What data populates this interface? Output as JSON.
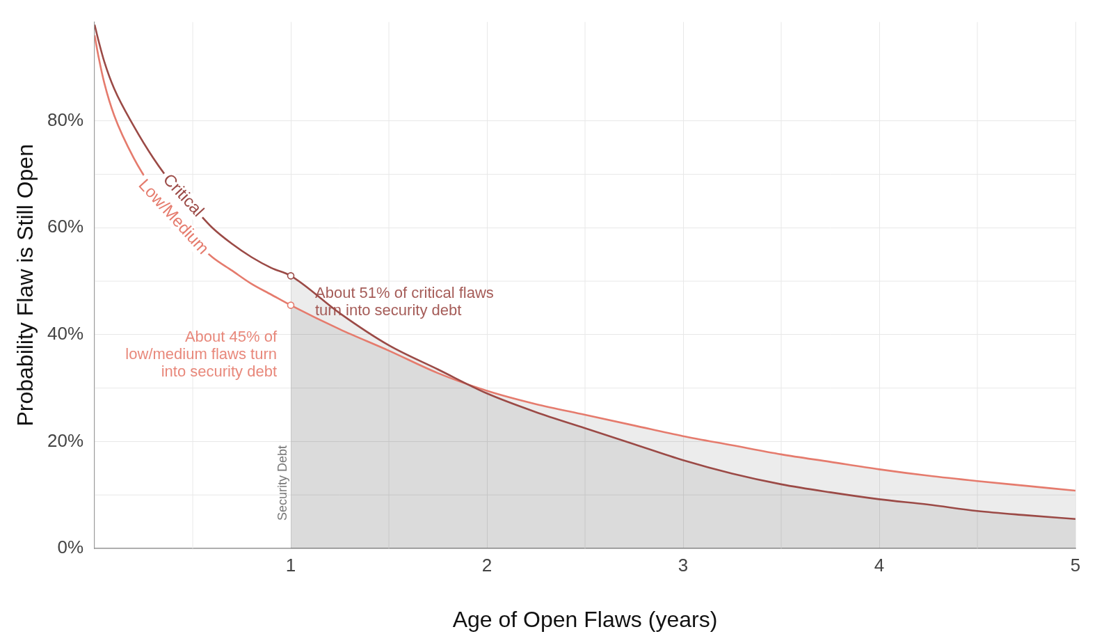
{
  "chart_data": {
    "type": "line",
    "x_label": "Age of Open Flaws (years)",
    "y_label": "Probability Flaw is Still Open",
    "x": [
      0,
      0.02,
      0.05,
      0.1,
      0.2,
      0.3,
      0.4,
      0.5,
      0.6,
      0.7,
      0.8,
      0.9,
      1,
      1.25,
      1.5,
      1.75,
      2,
      2.25,
      2.5,
      2.75,
      3,
      3.25,
      3.5,
      3.75,
      4,
      4.25,
      4.5,
      4.75,
      5
    ],
    "series": [
      {
        "name": "Critical",
        "color": "#9b4a46",
        "values": [
          98,
          95,
          91,
          86,
          79,
          73,
          68,
          64,
          60,
          57,
          54.5,
          52.5,
          51,
          44,
          38,
          33.5,
          29,
          25.5,
          22.5,
          19.5,
          16.5,
          14,
          12,
          10.5,
          9.2,
          8.2,
          7,
          6.2,
          5.5
        ]
      },
      {
        "name": "Low/Medium",
        "color": "#e57b6d",
        "values": [
          96,
          92,
          87,
          81,
          73,
          67,
          62,
          58,
          54.5,
          52,
          49.5,
          47.5,
          45.5,
          41,
          37,
          32.8,
          29.5,
          27,
          25,
          23,
          21,
          19.3,
          17.6,
          16.2,
          14.8,
          13.6,
          12.6,
          11.7,
          10.8
        ]
      }
    ],
    "xlim": [
      0,
      5
    ],
    "xticks": [
      1,
      2,
      3,
      4,
      5
    ],
    "ylim": [
      0,
      98.5
    ],
    "yticks": [
      {
        "value": 0,
        "label": "0%"
      },
      {
        "value": 20,
        "label": "20%"
      },
      {
        "value": 40,
        "label": "40%"
      },
      {
        "value": 60,
        "label": "60%"
      },
      {
        "value": 80,
        "label": "80%"
      }
    ],
    "grid": true,
    "security_debt": {
      "x": 1,
      "label": "Security Debt"
    },
    "annotations": [
      {
        "series": "Critical",
        "x": 1,
        "marker": "circle",
        "lines": [
          "About 51% of critical flaws",
          "turn into security debt"
        ]
      },
      {
        "series": "Low/Medium",
        "x": 1,
        "marker": "circle",
        "lines": [
          "About 45% of",
          "low/medium flaws turn",
          "into security debt"
        ]
      }
    ]
  }
}
